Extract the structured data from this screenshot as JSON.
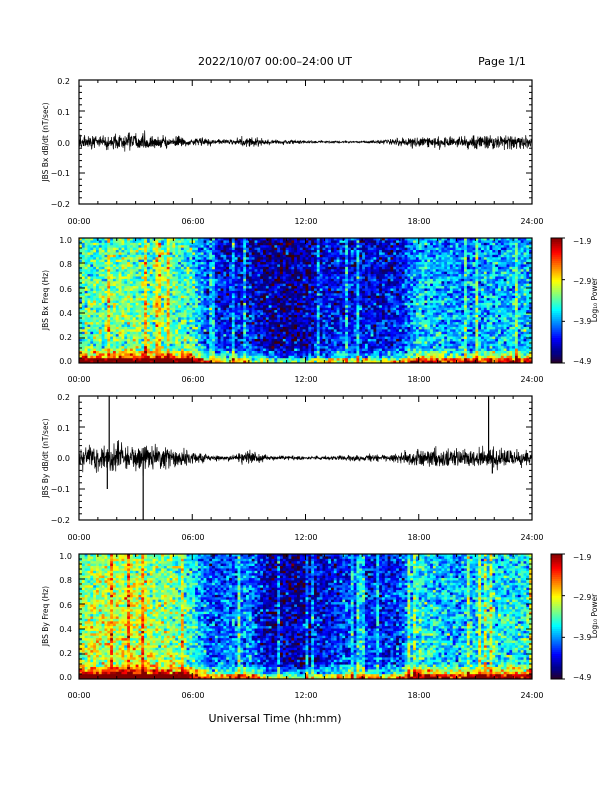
{
  "header": {
    "title": "2022/10/07  00:00–24:00 UT",
    "page": "Page 1/1"
  },
  "xlabel": "Universal Time (hh:mm)",
  "colorscale_name": "jet",
  "chart_data": [
    {
      "type": "line",
      "ylabel": "JBS Bx dB/dt (nT/sec)",
      "x_range_hours": [
        0,
        24
      ],
      "xticks": [
        "00:00",
        "06:00",
        "12:00",
        "18:00",
        "24:00"
      ],
      "ylim": [
        -0.2,
        0.2
      ],
      "yticks": [
        "0.2",
        "0.1",
        "0.0",
        "−0.1",
        "−0.2"
      ],
      "envelope": {
        "hours": [
          0,
          1,
          2,
          3,
          4,
          5,
          6,
          7,
          8,
          9,
          10,
          11,
          12,
          13,
          14,
          15,
          16,
          17,
          18,
          19,
          20,
          21,
          22,
          23,
          24
        ],
        "amplitude": [
          0.035,
          0.03,
          0.035,
          0.04,
          0.032,
          0.028,
          0.022,
          0.015,
          0.012,
          0.025,
          0.012,
          0.01,
          0.008,
          0.005,
          0.004,
          0.004,
          0.01,
          0.02,
          0.028,
          0.03,
          0.025,
          0.03,
          0.035,
          0.03,
          0.028
        ]
      },
      "grid": false
    },
    {
      "type": "heatmap",
      "ylabel": "JBS Bx Freq (Hz)",
      "x_range_hours": [
        0,
        24
      ],
      "xticks": [
        "00:00",
        "06:00",
        "12:00",
        "18:00",
        "24:00"
      ],
      "ylim": [
        0.0,
        1.0
      ],
      "yticks": [
        "1.0",
        "0.8",
        "0.6",
        "0.4",
        "0.2",
        "0.0"
      ],
      "colorbar": {
        "label": "Log₁₀ Power",
        "range": [
          -4.9,
          -1.9
        ],
        "ticks": [
          "−1.9",
          "−2.9",
          "−3.9",
          "−4.9"
        ]
      },
      "activity_by_hour": [
        0.62,
        0.62,
        0.66,
        0.66,
        0.64,
        0.62,
        0.6,
        0.25,
        0.22,
        0.22,
        0.12,
        0.1,
        0.12,
        0.2,
        0.25,
        0.22,
        0.2,
        0.24,
        0.5,
        0.45,
        0.4,
        0.42,
        0.45,
        0.46,
        0.46
      ]
    },
    {
      "type": "line",
      "ylabel": "JBS By dB/dt (nT/sec)",
      "x_range_hours": [
        0,
        24
      ],
      "xticks": [
        "00:00",
        "06:00",
        "12:00",
        "18:00",
        "24:00"
      ],
      "ylim": [
        -0.2,
        0.2
      ],
      "yticks": [
        "0.2",
        "0.1",
        "0.0",
        "−0.1",
        "−0.2"
      ],
      "envelope": {
        "hours": [
          0,
          1,
          2,
          3,
          4,
          5,
          6,
          7,
          8,
          9,
          10,
          11,
          12,
          13,
          14,
          15,
          16,
          17,
          18,
          19,
          20,
          21,
          22,
          23,
          24
        ],
        "amplitude": [
          0.05,
          0.06,
          0.07,
          0.065,
          0.06,
          0.05,
          0.03,
          0.015,
          0.012,
          0.035,
          0.012,
          0.01,
          0.008,
          0.01,
          0.012,
          0.015,
          0.02,
          0.028,
          0.05,
          0.045,
          0.04,
          0.045,
          0.05,
          0.045,
          0.035
        ]
      },
      "spikes": [
        {
          "hour": 1.6,
          "value": 0.2
        },
        {
          "hour": 1.5,
          "value": -0.1
        },
        {
          "hour": 3.4,
          "value": -0.2
        },
        {
          "hour": 21.7,
          "value": 0.2
        },
        {
          "hour": 21.9,
          "value": -0.05
        }
      ],
      "grid": false
    },
    {
      "type": "heatmap",
      "ylabel": "JBS By Freq (Hz)",
      "x_range_hours": [
        0,
        24
      ],
      "xticks": [
        "00:00",
        "06:00",
        "12:00",
        "18:00",
        "24:00"
      ],
      "ylim": [
        0.0,
        1.0
      ],
      "yticks": [
        "1.0",
        "0.8",
        "0.6",
        "0.4",
        "0.2",
        "0.0"
      ],
      "colorbar": {
        "label": "Log₁₀ Power",
        "range": [
          -4.9,
          -1.9
        ],
        "ticks": [
          "−1.9",
          "−2.9",
          "−3.9",
          "−4.9"
        ]
      },
      "activity_by_hour": [
        0.7,
        0.75,
        0.78,
        0.78,
        0.72,
        0.7,
        0.55,
        0.3,
        0.35,
        0.4,
        0.15,
        0.12,
        0.14,
        0.22,
        0.3,
        0.28,
        0.25,
        0.3,
        0.55,
        0.5,
        0.45,
        0.5,
        0.55,
        0.55,
        0.52
      ]
    }
  ]
}
